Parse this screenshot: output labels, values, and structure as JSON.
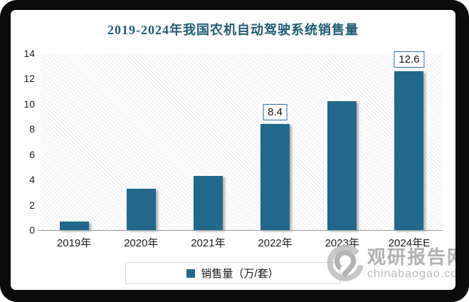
{
  "title": "2019-2024年我国农机自动驾驶系统销售量",
  "chart_data": {
    "type": "bar",
    "title": "2019-2024年我国农机自动驾驶系统销售量",
    "categories": [
      "2019年",
      "2020年",
      "2021年",
      "2022年",
      "2023年",
      "2024年E"
    ],
    "values": [
      0.7,
      3.3,
      4.3,
      8.4,
      10.2,
      12.6
    ],
    "data_labels": [
      "",
      "",
      "",
      "8.4",
      "",
      "12.6"
    ],
    "series_name": "销售量（万/套）",
    "xlabel": "",
    "ylabel": "",
    "ylim": [
      0,
      14
    ],
    "yticks": [
      0,
      2,
      4,
      6,
      8,
      10,
      12,
      14
    ],
    "grid": false,
    "legend_position": "bottom",
    "plot_background": "diagonal-hatch"
  },
  "legend": {
    "label": "销售量（万/套）"
  },
  "watermark": {
    "name": "观研报告网",
    "domain": "chinabaogao.com"
  },
  "colors": {
    "bar": "#20698c",
    "title": "#1f5c73",
    "data_label_border": "#2b7195",
    "axis_line": "#9a9a9a",
    "frame": "#0b0b0b",
    "watermark_gray": "#a3a3a3"
  }
}
